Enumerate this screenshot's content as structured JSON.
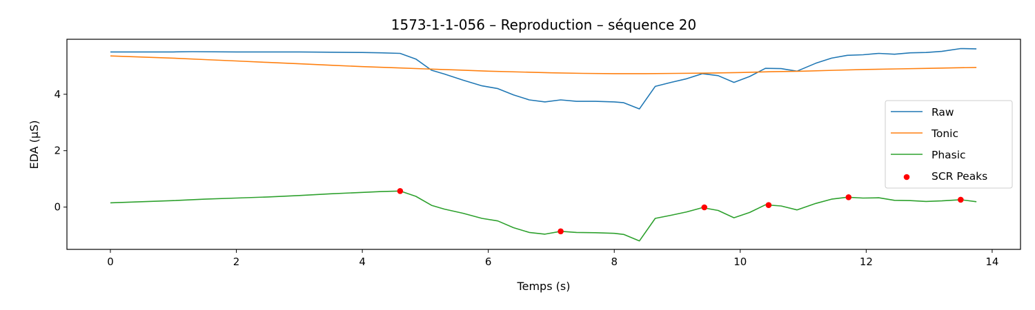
{
  "chart_data": {
    "type": "line",
    "title": "1573-1-1-056 – Reproduction – séquence 20",
    "xlabel": "Temps (s)",
    "ylabel": "EDA (µS)",
    "xlim": [
      -0.69,
      14.45
    ],
    "ylim": [
      -1.5,
      5.95
    ],
    "xticks": [
      0,
      2,
      4,
      6,
      8,
      10,
      12,
      14
    ],
    "yticks": [
      0,
      2,
      4
    ],
    "grid": false,
    "legend_position": "center-right",
    "series": [
      {
        "name": "Raw",
        "color": "#1f77b4",
        "points": [
          [
            0,
            5.5
          ],
          [
            0.5,
            5.5
          ],
          [
            1.0,
            5.5
          ],
          [
            1.3,
            5.51
          ],
          [
            2.0,
            5.5
          ],
          [
            2.5,
            5.5
          ],
          [
            3.0,
            5.5
          ],
          [
            3.5,
            5.49
          ],
          [
            4.0,
            5.48
          ],
          [
            4.3,
            5.47
          ],
          [
            4.6,
            5.45
          ],
          [
            4.85,
            5.25
          ],
          [
            5.1,
            4.85
          ],
          [
            5.3,
            4.72
          ],
          [
            5.6,
            4.5
          ],
          [
            5.9,
            4.3
          ],
          [
            6.15,
            4.2
          ],
          [
            6.4,
            3.98
          ],
          [
            6.65,
            3.8
          ],
          [
            6.9,
            3.73
          ],
          [
            7.15,
            3.8
          ],
          [
            7.4,
            3.75
          ],
          [
            7.7,
            3.75
          ],
          [
            8.0,
            3.73
          ],
          [
            8.15,
            3.7
          ],
          [
            8.4,
            3.48
          ],
          [
            8.65,
            4.28
          ],
          [
            8.9,
            4.42
          ],
          [
            9.15,
            4.55
          ],
          [
            9.4,
            4.73
          ],
          [
            9.65,
            4.66
          ],
          [
            9.9,
            4.42
          ],
          [
            10.15,
            4.63
          ],
          [
            10.4,
            4.92
          ],
          [
            10.65,
            4.91
          ],
          [
            10.9,
            4.82
          ],
          [
            11.2,
            5.1
          ],
          [
            11.45,
            5.28
          ],
          [
            11.7,
            5.38
          ],
          [
            11.95,
            5.4
          ],
          [
            12.2,
            5.45
          ],
          [
            12.45,
            5.42
          ],
          [
            12.7,
            5.47
          ],
          [
            12.95,
            5.48
          ],
          [
            13.2,
            5.52
          ],
          [
            13.5,
            5.62
          ],
          [
            13.75,
            5.61
          ]
        ]
      },
      {
        "name": "Tonic",
        "color": "#ff7f0e",
        "points": [
          [
            0,
            5.36
          ],
          [
            0.5,
            5.32
          ],
          [
            1.0,
            5.28
          ],
          [
            1.5,
            5.23
          ],
          [
            2.0,
            5.18
          ],
          [
            2.5,
            5.13
          ],
          [
            3.0,
            5.08
          ],
          [
            3.5,
            5.03
          ],
          [
            4.0,
            4.98
          ],
          [
            4.5,
            4.94
          ],
          [
            5.0,
            4.9
          ],
          [
            5.5,
            4.86
          ],
          [
            6.0,
            4.82
          ],
          [
            6.5,
            4.79
          ],
          [
            7.0,
            4.76
          ],
          [
            7.5,
            4.74
          ],
          [
            8.0,
            4.73
          ],
          [
            8.5,
            4.73
          ],
          [
            9.0,
            4.74
          ],
          [
            9.5,
            4.75
          ],
          [
            10.0,
            4.77
          ],
          [
            10.5,
            4.8
          ],
          [
            11.0,
            4.82
          ],
          [
            11.5,
            4.85
          ],
          [
            12.0,
            4.88
          ],
          [
            12.5,
            4.9
          ],
          [
            13.0,
            4.92
          ],
          [
            13.75,
            4.95
          ]
        ]
      },
      {
        "name": "Phasic",
        "color": "#2ca02c",
        "points": [
          [
            0,
            0.15
          ],
          [
            0.5,
            0.19
          ],
          [
            1.0,
            0.23
          ],
          [
            1.5,
            0.28
          ],
          [
            2.0,
            0.32
          ],
          [
            2.5,
            0.36
          ],
          [
            3.0,
            0.41
          ],
          [
            3.5,
            0.47
          ],
          [
            4.0,
            0.52
          ],
          [
            4.3,
            0.55
          ],
          [
            4.6,
            0.57
          ],
          [
            4.85,
            0.38
          ],
          [
            5.1,
            0.06
          ],
          [
            5.3,
            -0.07
          ],
          [
            5.6,
            -0.22
          ],
          [
            5.9,
            -0.4
          ],
          [
            6.15,
            -0.49
          ],
          [
            6.4,
            -0.73
          ],
          [
            6.65,
            -0.9
          ],
          [
            6.9,
            -0.96
          ],
          [
            7.15,
            -0.86
          ],
          [
            7.4,
            -0.9
          ],
          [
            7.7,
            -0.91
          ],
          [
            8.0,
            -0.93
          ],
          [
            8.15,
            -0.97
          ],
          [
            8.4,
            -1.2
          ],
          [
            8.65,
            -0.4
          ],
          [
            8.9,
            -0.29
          ],
          [
            9.15,
            -0.17
          ],
          [
            9.4,
            -0.02
          ],
          [
            9.65,
            -0.12
          ],
          [
            9.9,
            -0.38
          ],
          [
            10.15,
            -0.19
          ],
          [
            10.4,
            0.08
          ],
          [
            10.65,
            0.04
          ],
          [
            10.9,
            -0.1
          ],
          [
            11.2,
            0.13
          ],
          [
            11.45,
            0.28
          ],
          [
            11.7,
            0.35
          ],
          [
            11.95,
            0.32
          ],
          [
            12.2,
            0.33
          ],
          [
            12.45,
            0.24
          ],
          [
            12.7,
            0.23
          ],
          [
            12.95,
            0.2
          ],
          [
            13.2,
            0.22
          ],
          [
            13.5,
            0.26
          ],
          [
            13.75,
            0.19
          ]
        ]
      }
    ],
    "scatter": {
      "name": "SCR Peaks",
      "color": "#ff0000",
      "points": [
        [
          4.6,
          0.57
        ],
        [
          7.15,
          -0.86
        ],
        [
          9.43,
          -0.01
        ],
        [
          10.45,
          0.07
        ],
        [
          11.72,
          0.35
        ],
        [
          13.5,
          0.26
        ]
      ]
    }
  }
}
